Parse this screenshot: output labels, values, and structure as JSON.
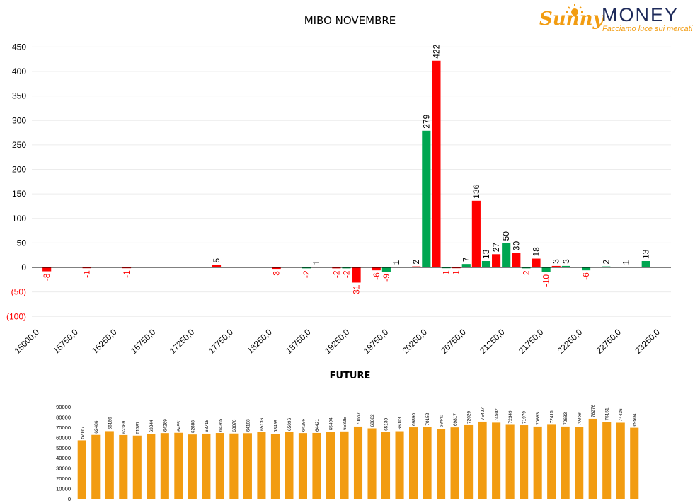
{
  "title": "MIBO NOVEMBRE",
  "logo": {
    "word1": "Sunny",
    "word2": "MONEY",
    "tagline": "Facciamo luce sui mercati"
  },
  "future_title": "FUTURE",
  "colors": {
    "positive": "#00a651",
    "negative": "#ff0000",
    "negative_label": "#ff0000",
    "future_bar": "#f29c11",
    "logo_orange": "#f29c11",
    "logo_navy": "#1e2a5a"
  },
  "chart_data": [
    {
      "type": "bar",
      "title": "MIBO NOVEMBRE",
      "x_tick_labels": [
        "15000,0",
        "15750,0",
        "16250,0",
        "16750,0",
        "17250,0",
        "17750,0",
        "18250,0",
        "18750,0",
        "19250,0",
        "19750,0",
        "20250,0",
        "20750,0",
        "21250,0",
        "21750,0",
        "22250,0",
        "22750,0",
        "23250,0"
      ],
      "y_tick_labels": [
        "450",
        "400",
        "350",
        "300",
        "250",
        "200",
        "150",
        "100",
        "50",
        "0",
        "(50)",
        "(100)"
      ],
      "ylim": [
        -100,
        450
      ],
      "bars": [
        {
          "slot": 1,
          "value": -8,
          "color": "red"
        },
        {
          "slot": 5,
          "value": -1,
          "color": "red"
        },
        {
          "slot": 9,
          "value": -1,
          "color": "red"
        },
        {
          "slot": 18,
          "value": 5,
          "color": "red"
        },
        {
          "slot": 24,
          "value": -3,
          "color": "red"
        },
        {
          "slot": 27,
          "value": -2,
          "color": "green"
        },
        {
          "slot": 28,
          "value": 1,
          "color": "red"
        },
        {
          "slot": 30,
          "value": -2,
          "color": "red"
        },
        {
          "slot": 31,
          "value": -2,
          "color": "green"
        },
        {
          "slot": 32,
          "value": -31,
          "color": "red"
        },
        {
          "slot": 34,
          "value": -6,
          "color": "red"
        },
        {
          "slot": 35,
          "value": -9,
          "color": "green"
        },
        {
          "slot": 36,
          "value": 1,
          "color": "red"
        },
        {
          "slot": 38,
          "value": 2,
          "color": "red"
        },
        {
          "slot": 39,
          "value": 279,
          "color": "green"
        },
        {
          "slot": 40,
          "value": 422,
          "color": "red"
        },
        {
          "slot": 41,
          "value": -1,
          "color": "green"
        },
        {
          "slot": 42,
          "value": -1,
          "color": "red"
        },
        {
          "slot": 43,
          "value": 7,
          "color": "green"
        },
        {
          "slot": 44,
          "value": 136,
          "color": "red"
        },
        {
          "slot": 45,
          "value": 13,
          "color": "green"
        },
        {
          "slot": 46,
          "value": 27,
          "color": "red"
        },
        {
          "slot": 47,
          "value": 50,
          "color": "green"
        },
        {
          "slot": 48,
          "value": 30,
          "color": "red"
        },
        {
          "slot": 49,
          "value": -2,
          "color": "green"
        },
        {
          "slot": 50,
          "value": 18,
          "color": "red"
        },
        {
          "slot": 51,
          "value": -10,
          "color": "green"
        },
        {
          "slot": 52,
          "value": 3,
          "color": "red"
        },
        {
          "slot": 53,
          "value": 3,
          "color": "green"
        },
        {
          "slot": 55,
          "value": -6,
          "color": "green"
        },
        {
          "slot": 57,
          "value": 2,
          "color": "green"
        },
        {
          "slot": 59,
          "value": 1,
          "color": "green"
        },
        {
          "slot": 61,
          "value": 13,
          "color": "green"
        }
      ],
      "grid": true,
      "legend": "none"
    },
    {
      "type": "bar",
      "title": "FUTURE",
      "values": [
        57167,
        62486,
        66166,
        62369,
        61787,
        63344,
        64269,
        64551,
        62888,
        63715,
        64365,
        63870,
        64188,
        65136,
        63498,
        65096,
        64296,
        64421,
        65494,
        65895,
        70657,
        68882,
        65130,
        66093,
        69890,
        70152,
        68440,
        69817,
        72029,
        75497,
        74502,
        72349,
        71979,
        70683,
        72415,
        70683,
        70368,
        78276,
        75151,
        74436,
        69504
      ],
      "y_tick_labels": [
        "90000",
        "80000",
        "70000",
        "60000",
        "50000",
        "40000",
        "30000",
        "20000",
        "10000",
        "0"
      ],
      "ylim": [
        0,
        90000
      ],
      "grid": false
    }
  ]
}
